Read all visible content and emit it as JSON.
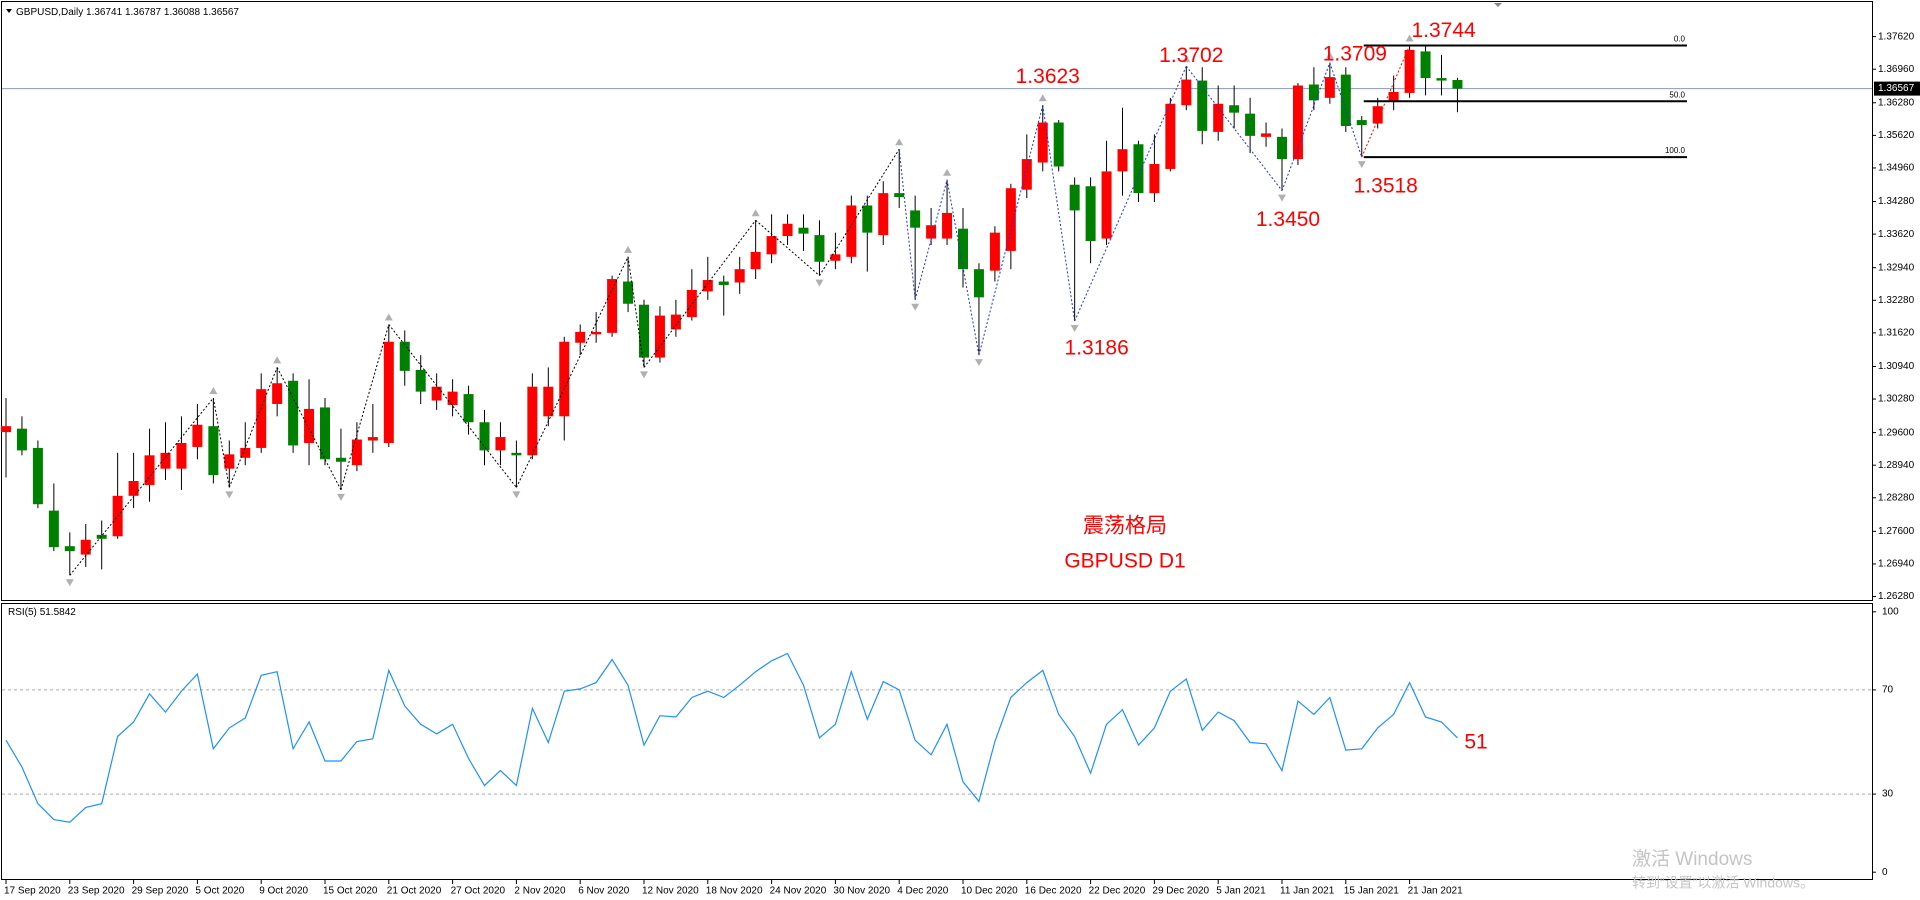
{
  "chart_data": [
    {
      "type": "candlestick",
      "title": "GBPUSD,Daily",
      "categories": [
        "17 Sep 2020",
        null,
        null,
        null,
        "23 Sep 2020",
        null,
        null,
        null,
        "29 Sep 2020",
        null,
        null,
        null,
        "5 Oct 2020",
        null,
        null,
        null,
        "9 Oct 2020",
        null,
        null,
        null,
        "15 Oct 2020",
        null,
        null,
        null,
        "21 Oct 2020",
        null,
        null,
        null,
        "27 Oct 2020",
        null,
        null,
        null,
        "2 Nov 2020",
        null,
        null,
        null,
        "6 Nov 2020",
        null,
        null,
        null,
        "12 Nov 2020",
        null,
        null,
        null,
        "18 Nov 2020",
        null,
        null,
        null,
        "24 Nov 2020",
        null,
        null,
        null,
        "30 Nov 2020",
        null,
        null,
        null,
        "4 Dec 2020",
        null,
        null,
        null,
        "10 Dec 2020",
        null,
        null,
        null,
        "16 Dec 2020",
        null,
        null,
        null,
        "22 Dec 2020",
        null,
        null,
        null,
        "29 Dec 2020",
        null,
        null,
        null,
        "5 Jan 2021",
        null,
        null,
        null,
        "11 Jan 2021",
        null,
        null,
        null,
        "15 Jan 2021",
        null,
        null,
        null,
        "21 Jan 2021",
        null,
        null,
        null
      ],
      "values": [
        [
          1.2961,
          1.303,
          1.2869,
          1.2973
        ],
        [
          1.2968,
          1.2993,
          1.2914,
          1.2924
        ],
        [
          1.2929,
          1.2944,
          1.2807,
          1.2815
        ],
        [
          1.2802,
          1.2857,
          1.272,
          1.2728
        ],
        [
          1.273,
          1.2758,
          1.2671,
          1.272
        ],
        [
          1.2713,
          1.2775,
          1.2688,
          1.2743
        ],
        [
          1.2753,
          1.2782,
          1.2683,
          1.2745
        ],
        [
          1.275,
          1.2919,
          1.2745,
          1.2832
        ],
        [
          1.2832,
          1.2919,
          1.2807,
          1.2862
        ],
        [
          1.2854,
          1.2968,
          1.282,
          1.2914
        ],
        [
          1.2887,
          1.2981,
          1.2864,
          1.2919
        ],
        [
          1.2887,
          1.2993,
          1.2844,
          1.2939
        ],
        [
          1.2931,
          1.3018,
          1.2906,
          1.2976
        ],
        [
          1.2973,
          1.303,
          1.2857,
          1.2874
        ],
        [
          1.2887,
          1.2944,
          1.2849,
          1.2916
        ],
        [
          1.2909,
          1.2981,
          1.2894,
          1.2929
        ],
        [
          1.2929,
          1.308,
          1.2919,
          1.3048
        ],
        [
          1.3018,
          1.3092,
          1.2993,
          1.306
        ],
        [
          1.3065,
          1.308,
          1.2919,
          1.2934
        ],
        [
          1.2939,
          1.3068,
          1.2894,
          1.3008
        ],
        [
          1.3011,
          1.303,
          1.2894,
          1.2906
        ],
        [
          1.2909,
          1.2968,
          1.2844,
          1.2901
        ],
        [
          1.2894,
          1.2981,
          1.2882,
          1.2946
        ],
        [
          1.2944,
          1.3018,
          1.2919,
          1.2951
        ],
        [
          1.2939,
          1.3179,
          1.2931,
          1.3144
        ],
        [
          1.3144,
          1.3167,
          1.3055,
          1.3085
        ],
        [
          1.3087,
          1.3117,
          1.3018,
          1.3043
        ],
        [
          1.3025,
          1.308,
          1.3006,
          1.3053
        ],
        [
          1.3016,
          1.3068,
          1.2993,
          1.3043
        ],
        [
          1.3038,
          1.3055,
          1.2956,
          1.2981
        ],
        [
          1.2981,
          1.3006,
          1.2894,
          1.2924
        ],
        [
          1.2924,
          1.2981,
          1.2894,
          1.2951
        ],
        [
          1.2919,
          1.2944,
          1.2849,
          1.2914
        ],
        [
          1.2914,
          1.308,
          1.2906,
          1.3053
        ],
        [
          1.2993,
          1.3092,
          1.2973,
          1.3053
        ],
        [
          1.2993,
          1.3154,
          1.2944,
          1.3144
        ],
        [
          1.3142,
          1.3179,
          1.3117,
          1.3164
        ],
        [
          1.3159,
          1.3204,
          1.3142,
          1.3164
        ],
        [
          1.3162,
          1.3278,
          1.3154,
          1.3271
        ],
        [
          1.3266,
          1.3316,
          1.3204,
          1.3221
        ],
        [
          1.3219,
          1.3229,
          1.3092,
          1.3112
        ],
        [
          1.3112,
          1.3216,
          1.3102,
          1.3197
        ],
        [
          1.3169,
          1.3229,
          1.3154,
          1.3199
        ],
        [
          1.3194,
          1.3291,
          1.3187,
          1.3249
        ],
        [
          1.3246,
          1.3316,
          1.3229,
          1.3269
        ],
        [
          1.3266,
          1.3278,
          1.3197,
          1.3259
        ],
        [
          1.3264,
          1.3316,
          1.3241,
          1.3291
        ],
        [
          1.3291,
          1.339,
          1.3271,
          1.3326
        ],
        [
          1.3321,
          1.3402,
          1.3303,
          1.3358
        ],
        [
          1.3358,
          1.3402,
          1.334,
          1.3383
        ],
        [
          1.3375,
          1.3402,
          1.3328,
          1.3363
        ],
        [
          1.336,
          1.339,
          1.3278,
          1.3306
        ],
        [
          1.3308,
          1.3365,
          1.3291,
          1.3321
        ],
        [
          1.3316,
          1.344,
          1.3303,
          1.342
        ],
        [
          1.342,
          1.344,
          1.3286,
          1.3365
        ],
        [
          1.336,
          1.3469,
          1.334,
          1.3445
        ],
        [
          1.3445,
          1.3534,
          1.3415,
          1.3437
        ],
        [
          1.341,
          1.344,
          1.3229,
          1.3375
        ],
        [
          1.3353,
          1.3415,
          1.334,
          1.338
        ],
        [
          1.3353,
          1.3472,
          1.334,
          1.3405
        ],
        [
          1.3373,
          1.3415,
          1.3254,
          1.3291
        ],
        [
          1.3291,
          1.3303,
          1.3117,
          1.3234
        ],
        [
          1.3288,
          1.3378,
          1.3266,
          1.3365
        ],
        [
          1.3328,
          1.3464,
          1.3291,
          1.3455
        ],
        [
          1.3452,
          1.3564,
          1.3435,
          1.3514
        ],
        [
          1.3507,
          1.3623,
          1.3489,
          1.3588
        ],
        [
          1.3588,
          1.3593,
          1.3489,
          1.3499
        ],
        [
          1.3462,
          1.3477,
          1.3186,
          1.341
        ],
        [
          1.3459,
          1.3477,
          1.3303,
          1.3348
        ],
        [
          1.3353,
          1.3551,
          1.334,
          1.3489
        ],
        [
          1.3489,
          1.3618,
          1.344,
          1.3534
        ],
        [
          1.3544,
          1.3551,
          1.3427,
          1.3445
        ],
        [
          1.3445,
          1.3564,
          1.3427,
          1.3504
        ],
        [
          1.3494,
          1.3638,
          1.3489,
          1.3626
        ],
        [
          1.3623,
          1.3702,
          1.3613,
          1.3675
        ],
        [
          1.3673,
          1.37,
          1.3544,
          1.3571
        ],
        [
          1.3569,
          1.3663,
          1.3551,
          1.3626
        ],
        [
          1.3623,
          1.3663,
          1.3576,
          1.3608
        ],
        [
          1.3606,
          1.3638,
          1.3526,
          1.3561
        ],
        [
          1.3559,
          1.3588,
          1.3539,
          1.3566
        ],
        [
          1.3559,
          1.3576,
          1.345,
          1.3514
        ],
        [
          1.3514,
          1.3668,
          1.3502,
          1.3663
        ],
        [
          1.3665,
          1.37,
          1.3613,
          1.3633
        ],
        [
          1.3638,
          1.3709,
          1.3626,
          1.368
        ],
        [
          1.3685,
          1.37,
          1.3569,
          1.3581
        ],
        [
          1.3593,
          1.3601,
          1.3518,
          1.3583
        ],
        [
          1.3586,
          1.3638,
          1.3576,
          1.3621
        ],
        [
          1.3631,
          1.3683,
          1.3613,
          1.365
        ],
        [
          1.3648,
          1.3744,
          1.3638,
          1.3735
        ],
        [
          1.3732,
          1.3742,
          1.3643,
          1.3678
        ],
        [
          1.3678,
          1.3725,
          1.3643,
          1.3673
        ],
        [
          1.36741,
          1.36787,
          1.36088,
          1.36567
        ]
      ],
      "value_labels": {
        "80": [
          null,
          null,
          "1.3450",
          null
        ]
      },
      "up_color": "#ff0000",
      "down_color": "#008000",
      "ylim": [
        1.2621,
        1.3824
      ],
      "yticks": [
        {
          "value": 1.3762,
          "label": "1.37620"
        },
        {
          "value": 1.3696,
          "label": "1.36960"
        },
        {
          "value": 1.3628,
          "label": "1.36280"
        },
        {
          "value": 1.3562,
          "label": "1.35620"
        },
        {
          "value": 1.3496,
          "label": "1.34960"
        },
        {
          "value": 1.3428,
          "label": "1.34280"
        },
        {
          "value": 1.3362,
          "label": "1.33620"
        },
        {
          "value": 1.3294,
          "label": "1.32940"
        },
        {
          "value": 1.3228,
          "label": "1.32280"
        },
        {
          "value": 1.3162,
          "label": "1.31620"
        },
        {
          "value": 1.3094,
          "label": "1.30940"
        },
        {
          "value": 1.3028,
          "label": "1.30280"
        },
        {
          "value": 1.296,
          "label": "1.29600"
        },
        {
          "value": 1.2894,
          "label": "1.28940"
        },
        {
          "value": 1.2828,
          "label": "1.28280"
        },
        {
          "value": 1.276,
          "label": "1.27600"
        },
        {
          "value": 1.2694,
          "label": "1.26940"
        },
        {
          "value": 1.2628,
          "label": "1.26280"
        }
      ],
      "grid": false,
      "fibonacci": [
        {
          "value": 1.3744,
          "label": "0.0"
        },
        {
          "value": 1.3631,
          "label": "50.0"
        },
        {
          "value": 1.3518,
          "label": "100.0"
        }
      ],
      "annotations": [
        "震荡格局",
        "GBPUSD D1"
      ],
      "annotation_color": "#ff0000"
    },
    {
      "type": "line",
      "title": "RSI(5)",
      "color": "#1e90ff",
      "values": [
        50.7,
        40.4,
        26.3,
        20.2,
        19.2,
        24.9,
        26.3,
        52.1,
        57.7,
        68.5,
        61.5,
        69.5,
        76.1,
        47.4,
        55.4,
        59.2,
        75.6,
        77.0,
        47.4,
        57.7,
        42.7,
        42.7,
        50.2,
        51.2,
        77.5,
        63.8,
        56.8,
        53.1,
        56.8,
        43.7,
        33.3,
        39.0,
        33.3,
        62.9,
        49.8,
        69.5,
        70.4,
        72.8,
        81.7,
        71.8,
        48.8,
        60.1,
        59.6,
        67.1,
        69.5,
        67.1,
        71.8,
        77.0,
        81.2,
        84.0,
        71.8,
        51.6,
        56.8,
        77.0,
        58.7,
        73.2,
        70.0,
        50.7,
        45.1,
        56.8,
        34.7,
        27.2,
        50.2,
        67.1,
        72.8,
        77.5,
        60.6,
        52.1,
        38.0,
        56.8,
        62.4,
        48.8,
        55.4,
        69.5,
        74.2,
        54.5,
        61.5,
        58.2,
        49.8,
        49.3,
        39.0,
        65.7,
        60.6,
        67.1,
        46.9,
        47.4,
        55.4,
        60.6,
        72.8,
        59.6,
        57.7,
        51.5842
      ],
      "ylim": [
        -3,
        103
      ],
      "yticks": [
        100,
        70,
        30,
        0
      ],
      "levels": [
        70,
        30
      ],
      "annotation": "51"
    }
  ],
  "watermark": [
    "激活 Windows",
    "转到“设置”以激活 Windows。"
  ]
}
